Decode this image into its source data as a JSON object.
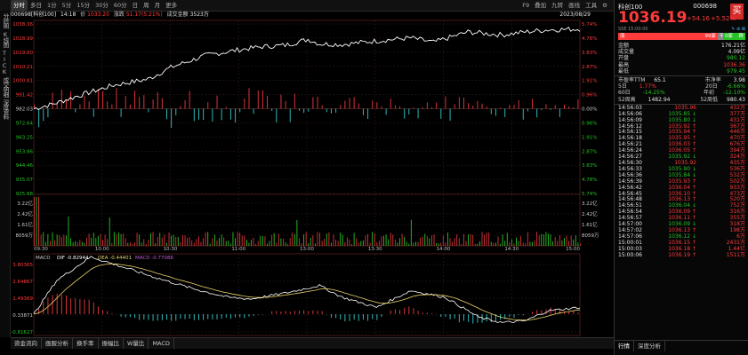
{
  "top_tabs": [
    "分时",
    "多日",
    "1分",
    "5分",
    "15分",
    "30分",
    "60分",
    "日",
    "周",
    "月",
    "更多"
  ],
  "top_right": [
    "F9",
    "叠加",
    "九转",
    "画线",
    "工具",
    "⚙"
  ],
  "left_tools": [
    "分时图",
    "K线图",
    "TICK",
    "成交明细",
    "深度资料"
  ],
  "info": {
    "code_name": "000698[科创100]",
    "time": "14:18",
    "price_label": "价",
    "price": "1033.20",
    "change_label": "涨跌",
    "change": "51.17(5.21%)",
    "amount_label": "成交金额",
    "amount": "3523万",
    "date": "2023/08/29"
  },
  "price_axis_left": [
    "1038.36",
    "1028.99",
    "1019.60",
    "1010.21",
    "1000.81",
    "991.42",
    "982.03",
    "972.64",
    "963.25",
    "953.86",
    "944.46",
    "935.07",
    "925.68"
  ],
  "price_axis_right": [
    "5.74%",
    "4.78%",
    "3.83%",
    "2.87%",
    "1.91%",
    "0.96%",
    "0.00%",
    "0.96%",
    "1.91%",
    "2.87%",
    "3.83%",
    "4.78%",
    "5.74%"
  ],
  "vol_axis_left": [
    "3.22亿",
    "2.42亿",
    "1.61亿",
    "8059万"
  ],
  "vol_axis_right": [
    "3.22亿",
    "2.42亿",
    "1.61亿",
    "8059万"
  ],
  "time_axis": [
    "09:30",
    "10:00",
    "10:30",
    "11:00",
    "13:00",
    "13:30",
    "14:00",
    "14:30",
    "15:00"
  ],
  "macd": {
    "label": "MACD",
    "dif_label": "DIF",
    "dif": "-0.82944",
    "dea_label": "DEA",
    "dea": "-0.44401",
    "macd_label": "MACD",
    "macd_val": "-0.77086",
    "axis": [
      "3.80365",
      "2.64867",
      "1.49369",
      "0.33871",
      "-0.81627"
    ]
  },
  "bottom_tabs": [
    "资金流向",
    "画服分析",
    "换手率",
    "振幅比",
    "W量比",
    "MACD"
  ],
  "right": {
    "name": "科创100",
    "code": "000698",
    "buy_label": "买",
    "price": "1036.19",
    "change": "+54.16",
    "pct": "+5.52%",
    "sub_left": "SSE  15:00:00",
    "icons": "✎ ⊕ ⊠",
    "bars": [
      {
        "label": "涨",
        "val": "99家",
        "color": "#ff3b3b"
      },
      {
        "label": "平",
        "val": "",
        "color": "#888"
      },
      {
        "label": "0家",
        "val": "跌",
        "color": "#27c227"
      }
    ],
    "stats": [
      {
        "k": "金额",
        "v": "176.21亿",
        "c": "white"
      },
      {
        "k": "成交量",
        "v": "4.09亿",
        "c": "white"
      },
      {
        "k": "开盘",
        "v": "980.12",
        "c": "green"
      },
      {
        "k": "最高",
        "v": "1036.36",
        "c": "red"
      },
      {
        "k": "最低",
        "v": "979.45",
        "c": "green"
      }
    ],
    "pe": {
      "k1": "市盈率TTM",
      "v1": "65.1",
      "k2": "市净率",
      "v2": "3.98"
    },
    "periods": [
      {
        "k1": "5日",
        "v1": "1.77%",
        "k2": "20日",
        "v2": "-6.66%",
        "c1": "red",
        "c2": "green"
      },
      {
        "k1": "60日",
        "v1": "-14.25%",
        "k2": "年初",
        "v2": "-12.10%",
        "c1": "green",
        "c2": "green"
      },
      {
        "k1": "52周高",
        "v1": "1482.94",
        "k2": "52周低",
        "v2": "980.43",
        "c1": "white",
        "c2": "white"
      }
    ],
    "ticks": [
      {
        "t": "14:56:03",
        "p": "1035.96",
        "v": "432万"
      },
      {
        "t": "14:56:06",
        "p": "1035.85 ↓",
        "v": "377万"
      },
      {
        "t": "14:56:09",
        "p": "1035.80 ↓",
        "v": "431万"
      },
      {
        "t": "14:56:12",
        "p": "1035.92 ↑",
        "v": "367万"
      },
      {
        "t": "14:56:15",
        "p": "1035.94 ↑",
        "v": "446万"
      },
      {
        "t": "14:56:18",
        "p": "1035.95 ↑",
        "v": "470万"
      },
      {
        "t": "14:56:21",
        "p": "1036.03 ↑",
        "v": "676万"
      },
      {
        "t": "14:56:24",
        "p": "1036.05 ↑",
        "v": "394万"
      },
      {
        "t": "14:56:27",
        "p": "1035.92 ↓",
        "v": "324万"
      },
      {
        "t": "14:56:30",
        "p": "1035.92",
        "v": "435万"
      },
      {
        "t": "14:56:33",
        "p": "1035.90 ↓",
        "v": "536万"
      },
      {
        "t": "14:56:36",
        "p": "1035.84 ↓",
        "v": "532万"
      },
      {
        "t": "14:56:39",
        "p": "1035.93 ↑",
        "v": "502万"
      },
      {
        "t": "14:56:42",
        "p": "1036.04 ↑",
        "v": "933万"
      },
      {
        "t": "14:56:45",
        "p": "1036.10 ↑",
        "v": "473万"
      },
      {
        "t": "14:56:48",
        "p": "1036.13 ↑",
        "v": "520万"
      },
      {
        "t": "14:56:51",
        "p": "1036.04 ↓",
        "v": "752万"
      },
      {
        "t": "14:56:54",
        "p": "1036.09 ↑",
        "v": "316万"
      },
      {
        "t": "14:56:57",
        "p": "1036.11 ↑",
        "v": "355万"
      },
      {
        "t": "14:57:00",
        "p": "1036.09 ↓",
        "v": "318万"
      },
      {
        "t": "14:57:02",
        "p": "1036.13 ↑",
        "v": "198万"
      },
      {
        "t": "14:57:06",
        "p": "1036.12 ↓",
        "v": "6万"
      },
      {
        "t": "15:00:01",
        "p": "1036.15 ↑",
        "v": "2431万"
      },
      {
        "t": "15:00:03",
        "p": "1036.18 ↑",
        "v": "1.44亿"
      },
      {
        "t": "15:00:06",
        "p": "1036.19 ↑",
        "v": "1511万"
      }
    ],
    "bottom_tabs": [
      "行情",
      "深度分析"
    ]
  },
  "colors": {
    "up": "#ff3b3b",
    "down": "#27c227",
    "line": "#ffffff",
    "avg": "#e8d46a",
    "grid": "#3a1f1f",
    "macdpos": "#d8343a",
    "macdneg": "#2fb7b7"
  }
}
